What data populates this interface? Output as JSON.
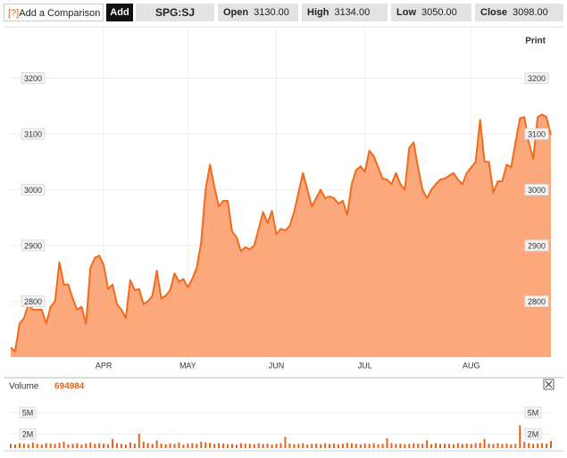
{
  "header": {
    "help": "[?]",
    "compare": "Add a Comparison",
    "add": "Add",
    "symbol": "SPG:SJ",
    "open_label": "Open",
    "open": "3130.00",
    "high_label": "High",
    "high": "3134.00",
    "low_label": "Low",
    "low": "3050.00",
    "close_label": "Close",
    "close": "3098.00",
    "print": "Print"
  },
  "chart_data": [
    {
      "type": "area",
      "categories": [
        null,
        null,
        null,
        null,
        null,
        null,
        null,
        null,
        null,
        null,
        null,
        null,
        null,
        null,
        null,
        null,
        null,
        null,
        null,
        null,
        null,
        "APR",
        null,
        null,
        null,
        null,
        null,
        null,
        null,
        null,
        null,
        null,
        null,
        null,
        null,
        null,
        null,
        null,
        null,
        null,
        "MAY",
        null,
        null,
        null,
        null,
        null,
        null,
        null,
        null,
        null,
        null,
        null,
        null,
        null,
        null,
        null,
        null,
        null,
        null,
        null,
        "JUN",
        null,
        null,
        null,
        null,
        null,
        null,
        null,
        null,
        null,
        null,
        null,
        null,
        null,
        null,
        null,
        null,
        null,
        null,
        null,
        "JUL",
        null,
        null,
        null,
        null,
        null,
        null,
        null,
        null,
        null,
        null,
        null,
        null,
        null,
        null,
        null,
        null,
        null,
        null,
        null,
        null,
        null,
        null,
        null,
        "AUG",
        null,
        null,
        null,
        null,
        null,
        null,
        null,
        null,
        null,
        null,
        null,
        null,
        null,
        null,
        null,
        null,
        null,
        null
      ],
      "values": [
        2717,
        2710,
        2760,
        2770,
        2795,
        2785,
        2785,
        2785,
        2760,
        2790,
        2800,
        2870,
        2830,
        2830,
        2805,
        2785,
        2790,
        2760,
        2860,
        2878,
        2882,
        2865,
        2822,
        2830,
        2795,
        2785,
        2770,
        2838,
        2820,
        2822,
        2795,
        2800,
        2810,
        2855,
        2805,
        2810,
        2820,
        2850,
        2835,
        2840,
        2825,
        2840,
        2860,
        2905,
        3000,
        3045,
        3005,
        2970,
        2980,
        2980,
        2925,
        2915,
        2890,
        2897,
        2893,
        2900,
        2930,
        2960,
        2940,
        2962,
        2920,
        2930,
        2927,
        2935,
        2960,
        2995,
        3030,
        3000,
        2970,
        2985,
        3000,
        2985,
        2988,
        2985,
        2975,
        2980,
        2955,
        3010,
        3035,
        3042,
        3032,
        3070,
        3060,
        3040,
        3020,
        3018,
        3010,
        3030,
        3010,
        3000,
        3075,
        3085,
        3040,
        3000,
        2985,
        3000,
        3010,
        3018,
        3020,
        3025,
        3030,
        3018,
        3010,
        3030,
        3040,
        3050,
        3125,
        3050,
        3050,
        2995,
        3015,
        3015,
        3045,
        3040,
        3085,
        3128,
        3130,
        3085,
        3055,
        3130,
        3135,
        3130,
        3098
      ],
      "color": "#f26b1d",
      "fill": "#fba87c",
      "ylim": [
        2700,
        3300
      ],
      "yticks": [
        2800,
        2900,
        3000,
        3100,
        3200
      ],
      "grid": true
    },
    {
      "type": "bar",
      "title": "Volume",
      "value": 694984,
      "color": "#e8631a",
      "values": [
        600000,
        500000,
        700000,
        650000,
        550000,
        800000,
        600000,
        500000,
        700000,
        650000,
        600000,
        750000,
        900000,
        550000,
        600000,
        700000,
        500000,
        650000,
        800000,
        600000,
        700000,
        650000,
        550000,
        1300000,
        700000,
        600000,
        500000,
        800000,
        650000,
        2000000,
        900000,
        700000,
        600000,
        1100000,
        650000,
        550000,
        700000,
        600000,
        800000,
        500000,
        650000,
        700000,
        600000,
        900000,
        800000,
        750000,
        600000,
        700000,
        650000,
        550000,
        600000,
        500000,
        700000,
        650000,
        600000,
        550000,
        700000,
        600000,
        650000,
        500000,
        600000,
        700000,
        1600000,
        650000,
        550000,
        600000,
        700000,
        500000,
        600000,
        650000,
        550000,
        700000,
        600000,
        650000,
        500000,
        600000,
        750000,
        700000,
        600000,
        550000,
        650000,
        600000,
        700000,
        550000,
        600000,
        1400000,
        700000,
        600000,
        650000,
        550000,
        600000,
        700000,
        650000,
        600000,
        1100000,
        550000,
        700000,
        600000,
        650000,
        600000,
        550000,
        700000,
        600000,
        650000,
        600000,
        700000,
        750000,
        1300000,
        650000,
        600000,
        700000,
        600000,
        650000,
        550000,
        600000,
        3200000,
        900000,
        700000,
        600000,
        650000,
        700000,
        650000,
        1000000
      ],
      "ylim": [
        0,
        6000000
      ],
      "yticks": [
        {
          "value": 2000000,
          "label": "2M"
        },
        {
          "value": 5000000,
          "label": "5M"
        }
      ]
    }
  ]
}
